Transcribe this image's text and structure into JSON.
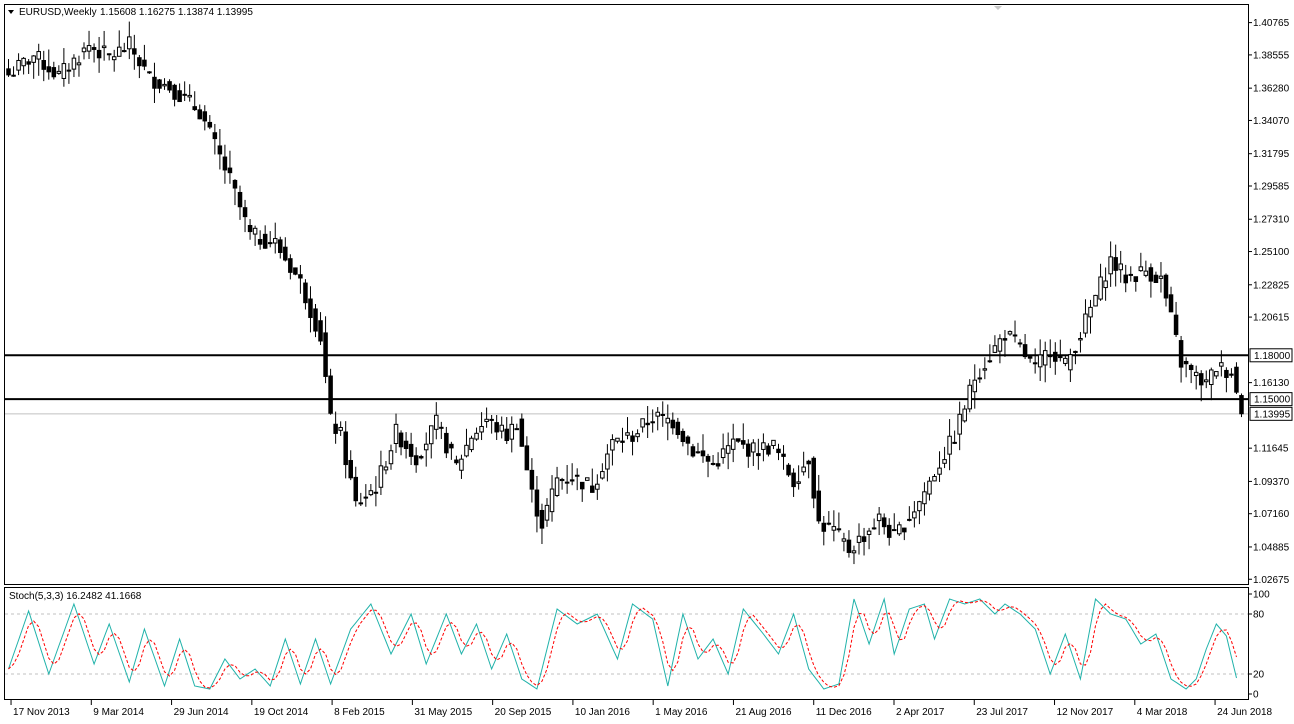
{
  "header": {
    "symbol": "EURUSD,Weekly",
    "ohlc": "1.15608 1.16275 1.13874 1.13995"
  },
  "stoch_header": {
    "label": "Stoch(5,3,3) 16.2482 41.1668"
  },
  "colors": {
    "background": "#ffffff",
    "candle": "#000000",
    "stoch_main": "#20b2aa",
    "stoch_signal": "#ff0000",
    "level_line": "#000000",
    "grid_dotted": "#c0c0c0",
    "current_price_line": "#c0c0c0"
  },
  "chart_data": {
    "type": "candlestick",
    "title": "EURUSD,Weekly",
    "price_axis": {
      "range": [
        1.0235,
        1.4197
      ],
      "ticks": [
        "1.40765",
        "1.38555",
        "1.36280",
        "1.34070",
        "1.31795",
        "1.29585",
        "1.27310",
        "1.25100",
        "1.22825",
        "1.20615",
        "1.16130",
        "1.13995",
        "1.11645",
        "1.09370",
        "1.07160",
        "1.04885",
        "1.02675"
      ]
    },
    "time_axis": {
      "labels": [
        "17 Nov 2013",
        "9 Mar 2014",
        "29 Jun 2014",
        "19 Oct 2014",
        "8 Feb 2015",
        "31 May 2015",
        "20 Sep 2015",
        "10 Jan 2016",
        "1 May 2016",
        "21 Aug 2016",
        "11 Dec 2016",
        "2 Apr 2017",
        "23 Jul 2017",
        "12 Nov 2017",
        "4 Mar 2018",
        "24 Jun 2018"
      ]
    },
    "levels": [
      {
        "value": 1.18,
        "label": "1.18000"
      },
      {
        "value": 1.15,
        "label": "1.15000"
      }
    ],
    "current_price": {
      "value": 1.13995,
      "label": "1.13995"
    },
    "anchors": [
      [
        0,
        1.372
      ],
      [
        5,
        1.385
      ],
      [
        10,
        1.371
      ],
      [
        16,
        1.392
      ],
      [
        20,
        1.384
      ],
      [
        24,
        1.392
      ],
      [
        28,
        1.37
      ],
      [
        32,
        1.364
      ],
      [
        38,
        1.347
      ],
      [
        44,
        1.3
      ],
      [
        48,
        1.262
      ],
      [
        53,
        1.257
      ],
      [
        58,
        1.23
      ],
      [
        62,
        1.193
      ],
      [
        64,
        1.135
      ],
      [
        66,
        1.125
      ],
      [
        69,
        1.078
      ],
      [
        73,
        1.09
      ],
      [
        77,
        1.127
      ],
      [
        81,
        1.11
      ],
      [
        85,
        1.133
      ],
      [
        89,
        1.104
      ],
      [
        92,
        1.125
      ],
      [
        95,
        1.136
      ],
      [
        99,
        1.125
      ],
      [
        101,
        1.135
      ],
      [
        104,
        1.085
      ],
      [
        106,
        1.065
      ],
      [
        109,
        1.095
      ],
      [
        112,
        1.097
      ],
      [
        116,
        1.09
      ],
      [
        120,
        1.12
      ],
      [
        124,
        1.125
      ],
      [
        128,
        1.138
      ],
      [
        132,
        1.135
      ],
      [
        136,
        1.115
      ],
      [
        140,
        1.105
      ],
      [
        144,
        1.12
      ],
      [
        148,
        1.115
      ],
      [
        152,
        1.118
      ],
      [
        156,
        1.094
      ],
      [
        159,
        1.11
      ],
      [
        161,
        1.065
      ],
      [
        164,
        1.06
      ],
      [
        167,
        1.047
      ],
      [
        170,
        1.057
      ],
      [
        173,
        1.068
      ],
      [
        176,
        1.055
      ],
      [
        178,
        1.065
      ],
      [
        181,
        1.08
      ],
      [
        184,
        1.1
      ],
      [
        188,
        1.125
      ],
      [
        190,
        1.145
      ],
      [
        192,
        1.165
      ],
      [
        196,
        1.185
      ],
      [
        198,
        1.195
      ],
      [
        201,
        1.185
      ],
      [
        204,
        1.17
      ],
      [
        207,
        1.185
      ],
      [
        210,
        1.173
      ],
      [
        213,
        1.195
      ],
      [
        216,
        1.22
      ],
      [
        219,
        1.245
      ],
      [
        222,
        1.233
      ],
      [
        226,
        1.238
      ],
      [
        229,
        1.232
      ],
      [
        231,
        1.205
      ],
      [
        233,
        1.175
      ],
      [
        236,
        1.165
      ],
      [
        238,
        1.16
      ],
      [
        240,
        1.172
      ],
      [
        243,
        1.169
      ],
      [
        245,
        1.14
      ]
    ]
  },
  "stoch_data": {
    "range": [
      0,
      100
    ],
    "levels": [
      80,
      20
    ],
    "ticks": [
      "100",
      "80",
      "20",
      "0"
    ],
    "anchors": [
      [
        0,
        25
      ],
      [
        4,
        83
      ],
      [
        8,
        20
      ],
      [
        13,
        90
      ],
      [
        17,
        30
      ],
      [
        20,
        70
      ],
      [
        24,
        12
      ],
      [
        27,
        65
      ],
      [
        31,
        8
      ],
      [
        34,
        55
      ],
      [
        37,
        8
      ],
      [
        40,
        5
      ],
      [
        43,
        35
      ],
      [
        46,
        15
      ],
      [
        49,
        25
      ],
      [
        52,
        8
      ],
      [
        55,
        55
      ],
      [
        58,
        10
      ],
      [
        61,
        55
      ],
      [
        64,
        10
      ],
      [
        68,
        65
      ],
      [
        72,
        90
      ],
      [
        76,
        40
      ],
      [
        80,
        80
      ],
      [
        83,
        30
      ],
      [
        87,
        80
      ],
      [
        90,
        40
      ],
      [
        93,
        70
      ],
      [
        96,
        25
      ],
      [
        99,
        60
      ],
      [
        102,
        15
      ],
      [
        105,
        5
      ],
      [
        109,
        85
      ],
      [
        113,
        70
      ],
      [
        117,
        80
      ],
      [
        121,
        35
      ],
      [
        124,
        90
      ],
      [
        128,
        75
      ],
      [
        131,
        8
      ],
      [
        134,
        80
      ],
      [
        137,
        35
      ],
      [
        140,
        55
      ],
      [
        143,
        20
      ],
      [
        146,
        85
      ],
      [
        150,
        60
      ],
      [
        153,
        40
      ],
      [
        156,
        80
      ],
      [
        159,
        25
      ],
      [
        162,
        5
      ],
      [
        165,
        10
      ],
      [
        168,
        95
      ],
      [
        171,
        50
      ],
      [
        174,
        95
      ],
      [
        176,
        40
      ],
      [
        179,
        85
      ],
      [
        182,
        90
      ],
      [
        184,
        55
      ],
      [
        187,
        95
      ],
      [
        190,
        90
      ],
      [
        193,
        95
      ],
      [
        196,
        80
      ],
      [
        198,
        90
      ],
      [
        201,
        80
      ],
      [
        204,
        65
      ],
      [
        207,
        20
      ],
      [
        210,
        60
      ],
      [
        213,
        15
      ],
      [
        216,
        95
      ],
      [
        219,
        80
      ],
      [
        222,
        75
      ],
      [
        225,
        50
      ],
      [
        228,
        60
      ],
      [
        231,
        15
      ],
      [
        234,
        5
      ],
      [
        236,
        15
      ],
      [
        238,
        45
      ],
      [
        240,
        70
      ],
      [
        242,
        58
      ],
      [
        244,
        16
      ]
    ]
  }
}
